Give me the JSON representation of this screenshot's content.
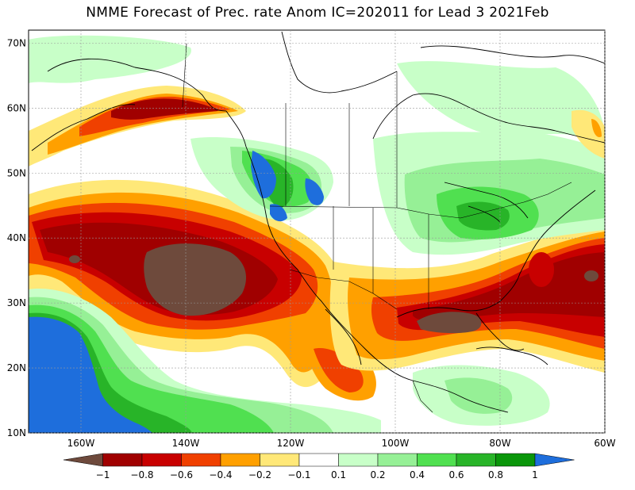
{
  "title": "NMME Forecast of Prec. rate Anom IC=202011 for Lead 3 2021Feb",
  "map": {
    "lon_range": [
      -170,
      -60
    ],
    "lat_range": [
      10,
      72
    ],
    "lon_ticks": [
      {
        "value": -160,
        "label": "160W"
      },
      {
        "value": -140,
        "label": "140W"
      },
      {
        "value": -120,
        "label": "120W"
      },
      {
        "value": -100,
        "label": "100W"
      },
      {
        "value": -80,
        "label": "80W"
      },
      {
        "value": -60,
        "label": "60W"
      }
    ],
    "lat_ticks": [
      {
        "value": 10,
        "label": "10N"
      },
      {
        "value": 20,
        "label": "20N"
      },
      {
        "value": 30,
        "label": "30N"
      },
      {
        "value": 40,
        "label": "40N"
      },
      {
        "value": 50,
        "label": "50N"
      },
      {
        "value": 60,
        "label": "60N"
      },
      {
        "value": 70,
        "label": "70N"
      }
    ]
  },
  "colorbar": {
    "colors": [
      "#6e4a3c",
      "#a00000",
      "#c80000",
      "#f04000",
      "#ffa000",
      "#ffe878",
      "#ffffff",
      "#c8ffc8",
      "#96f096",
      "#50e050",
      "#28b428",
      "#0a960a",
      "#1e6edc"
    ],
    "labels": [
      "−1",
      "−0.8",
      "−0.6",
      "−0.4",
      "−0.2",
      "−0.1",
      "0.1",
      "0.2",
      "0.4",
      "0.6",
      "0.8",
      "1"
    ]
  },
  "colors": {
    "land_line": "#000000",
    "ocean": "#ffffff"
  }
}
